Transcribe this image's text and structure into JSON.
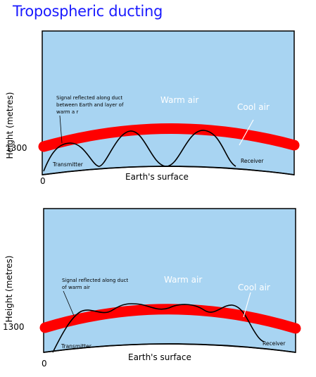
{
  "title": "Tropospheric ducting",
  "colors": {
    "sky": "#a8d4f2",
    "duct": "#ff0000",
    "ground": "#000000",
    "warm_text": "#ffffff",
    "title": "#1a1aff"
  },
  "panel1": {
    "y_axis_label": "Height (metres)",
    "height_tick": "1300",
    "zero_tick": "0",
    "annotation_lines": [
      "Signal reflected along duct",
      "between Earth and layer of",
      "warm a r"
    ],
    "warm_label": "Warm air",
    "cool_label": "Cool air",
    "transmitter_label": "Transmitter",
    "receiver_label": "Receiver",
    "surface_label": "Earth's surface"
  },
  "panel2": {
    "y_axis_label": "Height (metres)",
    "height_tick": "1300",
    "zero_tick": "0",
    "annotation_lines": [
      "Signal reflected along duct",
      "of warm air"
    ],
    "warm_label": "Warm air",
    "cool_label": "Cool air",
    "transmitter_label": "Transmitter",
    "receiver_label": "Receiver",
    "surface_label": "Earth's surface"
  }
}
